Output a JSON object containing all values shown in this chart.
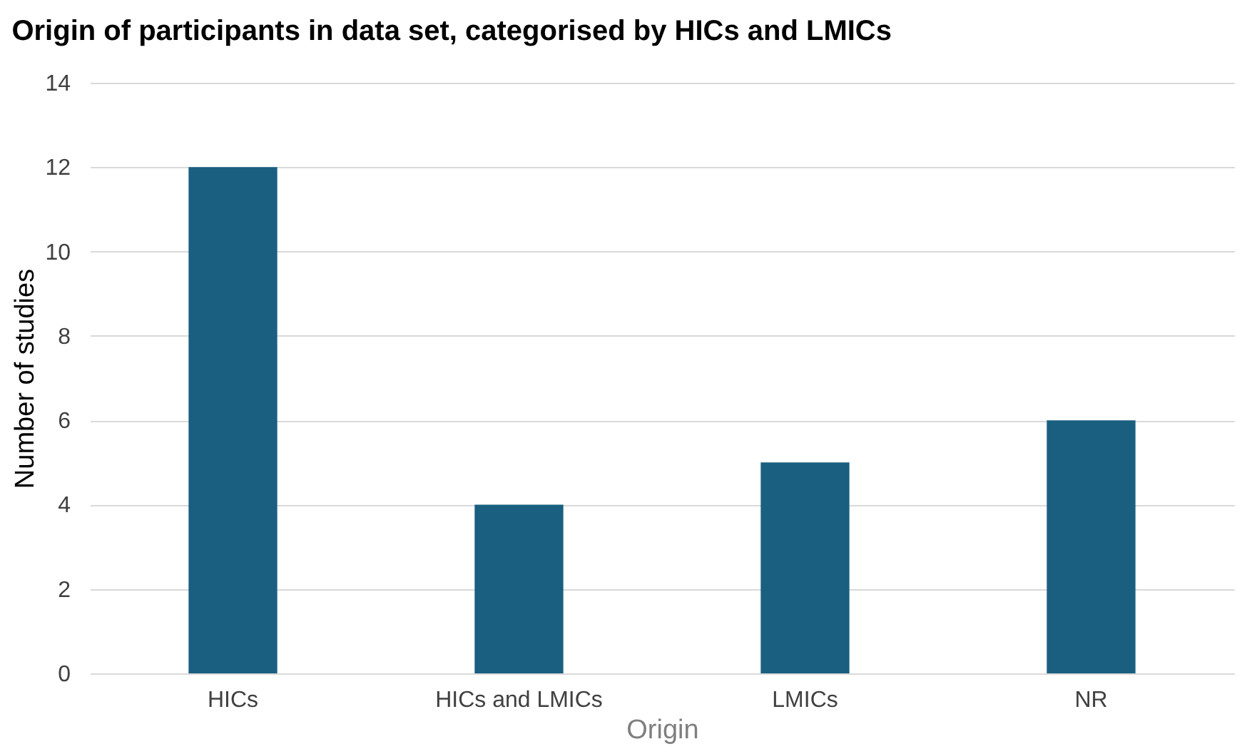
{
  "chart_data": {
    "type": "bar",
    "title": "Origin of participants in data set, categorised by HICs and LMICs",
    "xlabel": "Origin",
    "ylabel": "Number of studies",
    "categories": [
      "HICs",
      "HICs and LMICs",
      "LMICs",
      "NR"
    ],
    "values": [
      12,
      4,
      5,
      6
    ],
    "color": "#1a5f80",
    "ylim": [
      0,
      14
    ],
    "yticks": [
      0,
      2,
      4,
      6,
      8,
      10,
      12,
      14
    ],
    "grid": "y"
  }
}
